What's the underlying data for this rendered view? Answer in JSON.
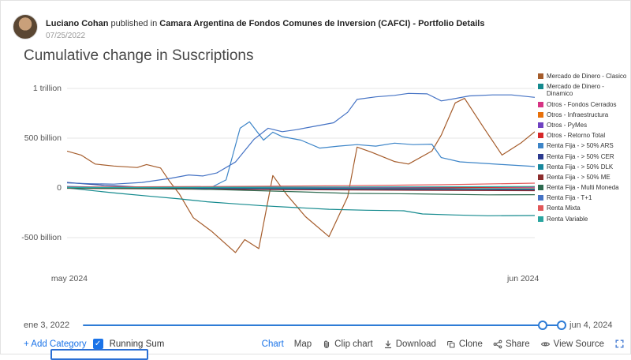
{
  "header": {
    "author": "Luciano Cohan",
    "published_in_prefix": "published in",
    "publication": "Camara Argentina de Fondos Comunes de Inversion (CAFCI) - Portfolio Details",
    "date": "07/25/2022"
  },
  "title": "Cumulative change in Suscriptions",
  "chart_data": {
    "type": "line",
    "title": "Cumulative change in Suscriptions",
    "y_unit": "billions (ARS)",
    "ylim": [
      -700,
      1050
    ],
    "grid": true,
    "legend_position": "right",
    "yticks": [
      {
        "value": 1000,
        "label": "1 trillion"
      },
      {
        "value": 500,
        "label": "500 billion"
      },
      {
        "value": 0,
        "label": "0"
      },
      {
        "value": -500,
        "label": "-500 billion"
      }
    ],
    "xticks": [
      {
        "pos": 0.5,
        "label": "may 2024"
      },
      {
        "pos": 97.5,
        "label": "jun 2024"
      }
    ],
    "x_axis_note": "x positions are percent across the visible date window (may 2024 - jun 4 2024); values in billions",
    "series": [
      {
        "name": "Mercado de Dinero - Clasico",
        "color": "#a55c2b",
        "points": [
          [
            0,
            370
          ],
          [
            3,
            330
          ],
          [
            6,
            240
          ],
          [
            10,
            220
          ],
          [
            15,
            205
          ],
          [
            17,
            235
          ],
          [
            20,
            200
          ],
          [
            22,
            60
          ],
          [
            24,
            -60
          ],
          [
            27,
            -300
          ],
          [
            31,
            -440
          ],
          [
            36,
            -650
          ],
          [
            38,
            -520
          ],
          [
            41,
            -610
          ],
          [
            44,
            125
          ],
          [
            47,
            -70
          ],
          [
            51,
            -290
          ],
          [
            56,
            -490
          ],
          [
            60,
            -90
          ],
          [
            62,
            410
          ],
          [
            65,
            360
          ],
          [
            70,
            265
          ],
          [
            73,
            240
          ],
          [
            78,
            370
          ],
          [
            80,
            530
          ],
          [
            83,
            855
          ],
          [
            85,
            900
          ],
          [
            89,
            610
          ],
          [
            93,
            330
          ],
          [
            97,
            450
          ],
          [
            100,
            565
          ]
        ]
      },
      {
        "name": "Mercado de Dinero - Dinamico",
        "color": "#148a8e",
        "points": [
          [
            0,
            0
          ],
          [
            6,
            -30
          ],
          [
            11,
            -55
          ],
          [
            18,
            -85
          ],
          [
            24,
            -110
          ],
          [
            30,
            -140
          ],
          [
            36,
            -160
          ],
          [
            42,
            -180
          ],
          [
            48,
            -195
          ],
          [
            56,
            -215
          ],
          [
            64,
            -225
          ],
          [
            72,
            -230
          ],
          [
            76,
            -262
          ],
          [
            83,
            -272
          ],
          [
            90,
            -280
          ],
          [
            100,
            -278
          ]
        ]
      },
      {
        "name": "Otros - Fondos Cerrados",
        "color": "#d63384",
        "points": [
          [
            0,
            2
          ],
          [
            25,
            3
          ],
          [
            50,
            4
          ],
          [
            75,
            5
          ],
          [
            100,
            6
          ]
        ]
      },
      {
        "name": "Otros - Infraestructura",
        "color": "#e8710a",
        "points": [
          [
            0,
            0
          ],
          [
            25,
            -4
          ],
          [
            50,
            -6
          ],
          [
            75,
            -8
          ],
          [
            100,
            -8
          ]
        ]
      },
      {
        "name": "Otros - PyMes",
        "color": "#6f42c1",
        "points": [
          [
            0,
            3
          ],
          [
            25,
            4
          ],
          [
            50,
            6
          ],
          [
            75,
            8
          ],
          [
            100,
            10
          ]
        ]
      },
      {
        "name": "Otros - Retorno Total",
        "color": "#d62728",
        "points": [
          [
            0,
            -3
          ],
          [
            20,
            -6
          ],
          [
            40,
            -10
          ],
          [
            60,
            -8
          ],
          [
            80,
            0
          ],
          [
            100,
            12
          ]
        ]
      },
      {
        "name": "Renta Fija - > 50% ARS",
        "color": "#3d85c8",
        "points": [
          [
            0,
            15
          ],
          [
            8,
            8
          ],
          [
            16,
            2
          ],
          [
            24,
            -8
          ],
          [
            30,
            -15
          ],
          [
            34,
            80
          ],
          [
            37,
            600
          ],
          [
            39,
            665
          ],
          [
            42,
            480
          ],
          [
            44,
            560
          ],
          [
            46,
            515
          ],
          [
            50,
            480
          ],
          [
            54,
            400
          ],
          [
            58,
            420
          ],
          [
            62,
            435
          ],
          [
            66,
            420
          ],
          [
            70,
            450
          ],
          [
            74,
            435
          ],
          [
            78,
            440
          ],
          [
            80,
            305
          ],
          [
            84,
            262
          ],
          [
            88,
            250
          ],
          [
            93,
            235
          ],
          [
            100,
            215
          ]
        ]
      },
      {
        "name": "Renta Fija - > 50% CER",
        "color": "#2b3a8f",
        "points": [
          [
            0,
            55
          ],
          [
            8,
            25
          ],
          [
            16,
            8
          ],
          [
            28,
            -4
          ],
          [
            45,
            -10
          ],
          [
            65,
            -14
          ],
          [
            85,
            -18
          ],
          [
            100,
            -20
          ]
        ]
      },
      {
        "name": "Renta Fija - > 50% DLK",
        "color": "#17879c",
        "points": [
          [
            0,
            8
          ],
          [
            25,
            2
          ],
          [
            50,
            -4
          ],
          [
            75,
            -8
          ],
          [
            100,
            -10
          ]
        ]
      },
      {
        "name": "Renta Fija - > 50% ME",
        "color": "#8c2d2d",
        "points": [
          [
            0,
            -4
          ],
          [
            25,
            -12
          ],
          [
            50,
            -18
          ],
          [
            75,
            -24
          ],
          [
            100,
            -28
          ]
        ]
      },
      {
        "name": "Renta Fija - Multi Moneda",
        "color": "#2d6a4f",
        "points": [
          [
            0,
            -2
          ],
          [
            25,
            -8
          ],
          [
            50,
            -40
          ],
          [
            60,
            -55
          ],
          [
            75,
            -60
          ],
          [
            90,
            -70
          ],
          [
            100,
            -68
          ]
        ]
      },
      {
        "name": "Renta Fija - T+1",
        "color": "#4472c4",
        "points": [
          [
            0,
            50
          ],
          [
            5,
            42
          ],
          [
            10,
            38
          ],
          [
            16,
            55
          ],
          [
            22,
            95
          ],
          [
            26,
            130
          ],
          [
            29,
            120
          ],
          [
            32,
            150
          ],
          [
            36,
            260
          ],
          [
            40,
            490
          ],
          [
            43,
            600
          ],
          [
            46,
            565
          ],
          [
            49,
            585
          ],
          [
            53,
            620
          ],
          [
            57,
            655
          ],
          [
            60,
            760
          ],
          [
            62,
            890
          ],
          [
            66,
            915
          ],
          [
            70,
            930
          ],
          [
            73,
            950
          ],
          [
            77,
            945
          ],
          [
            80,
            875
          ],
          [
            82,
            890
          ],
          [
            86,
            925
          ],
          [
            91,
            935
          ],
          [
            95,
            935
          ],
          [
            100,
            910
          ]
        ]
      },
      {
        "name": "Renta Mixta",
        "color": "#e15759",
        "points": [
          [
            0,
            8
          ],
          [
            20,
            12
          ],
          [
            40,
            16
          ],
          [
            60,
            22
          ],
          [
            80,
            32
          ],
          [
            100,
            48
          ]
        ]
      },
      {
        "name": "Renta Variable",
        "color": "#2aa5a0",
        "points": [
          [
            0,
            4
          ],
          [
            25,
            6
          ],
          [
            50,
            8
          ],
          [
            75,
            10
          ],
          [
            100,
            14
          ]
        ]
      }
    ]
  },
  "timeline": {
    "start_label": "ene 3, 2022",
    "end_label": "jun 4, 2024",
    "handle1_pos": 95.5,
    "handle2_pos": 99.5
  },
  "toolbar": {
    "add_category": "+ Add Category",
    "running_sum": "Running Sum",
    "running_sum_checked": true,
    "chart_label": "Chart",
    "map_label": "Map",
    "clip_chart": "Clip chart",
    "download": "Download",
    "clone": "Clone",
    "share": "Share",
    "view_source": "View Source"
  },
  "colors": {
    "accent_blue": "#1a73e8",
    "slider_blue": "#2e7cd6",
    "gridline": "#e4e4e4"
  }
}
